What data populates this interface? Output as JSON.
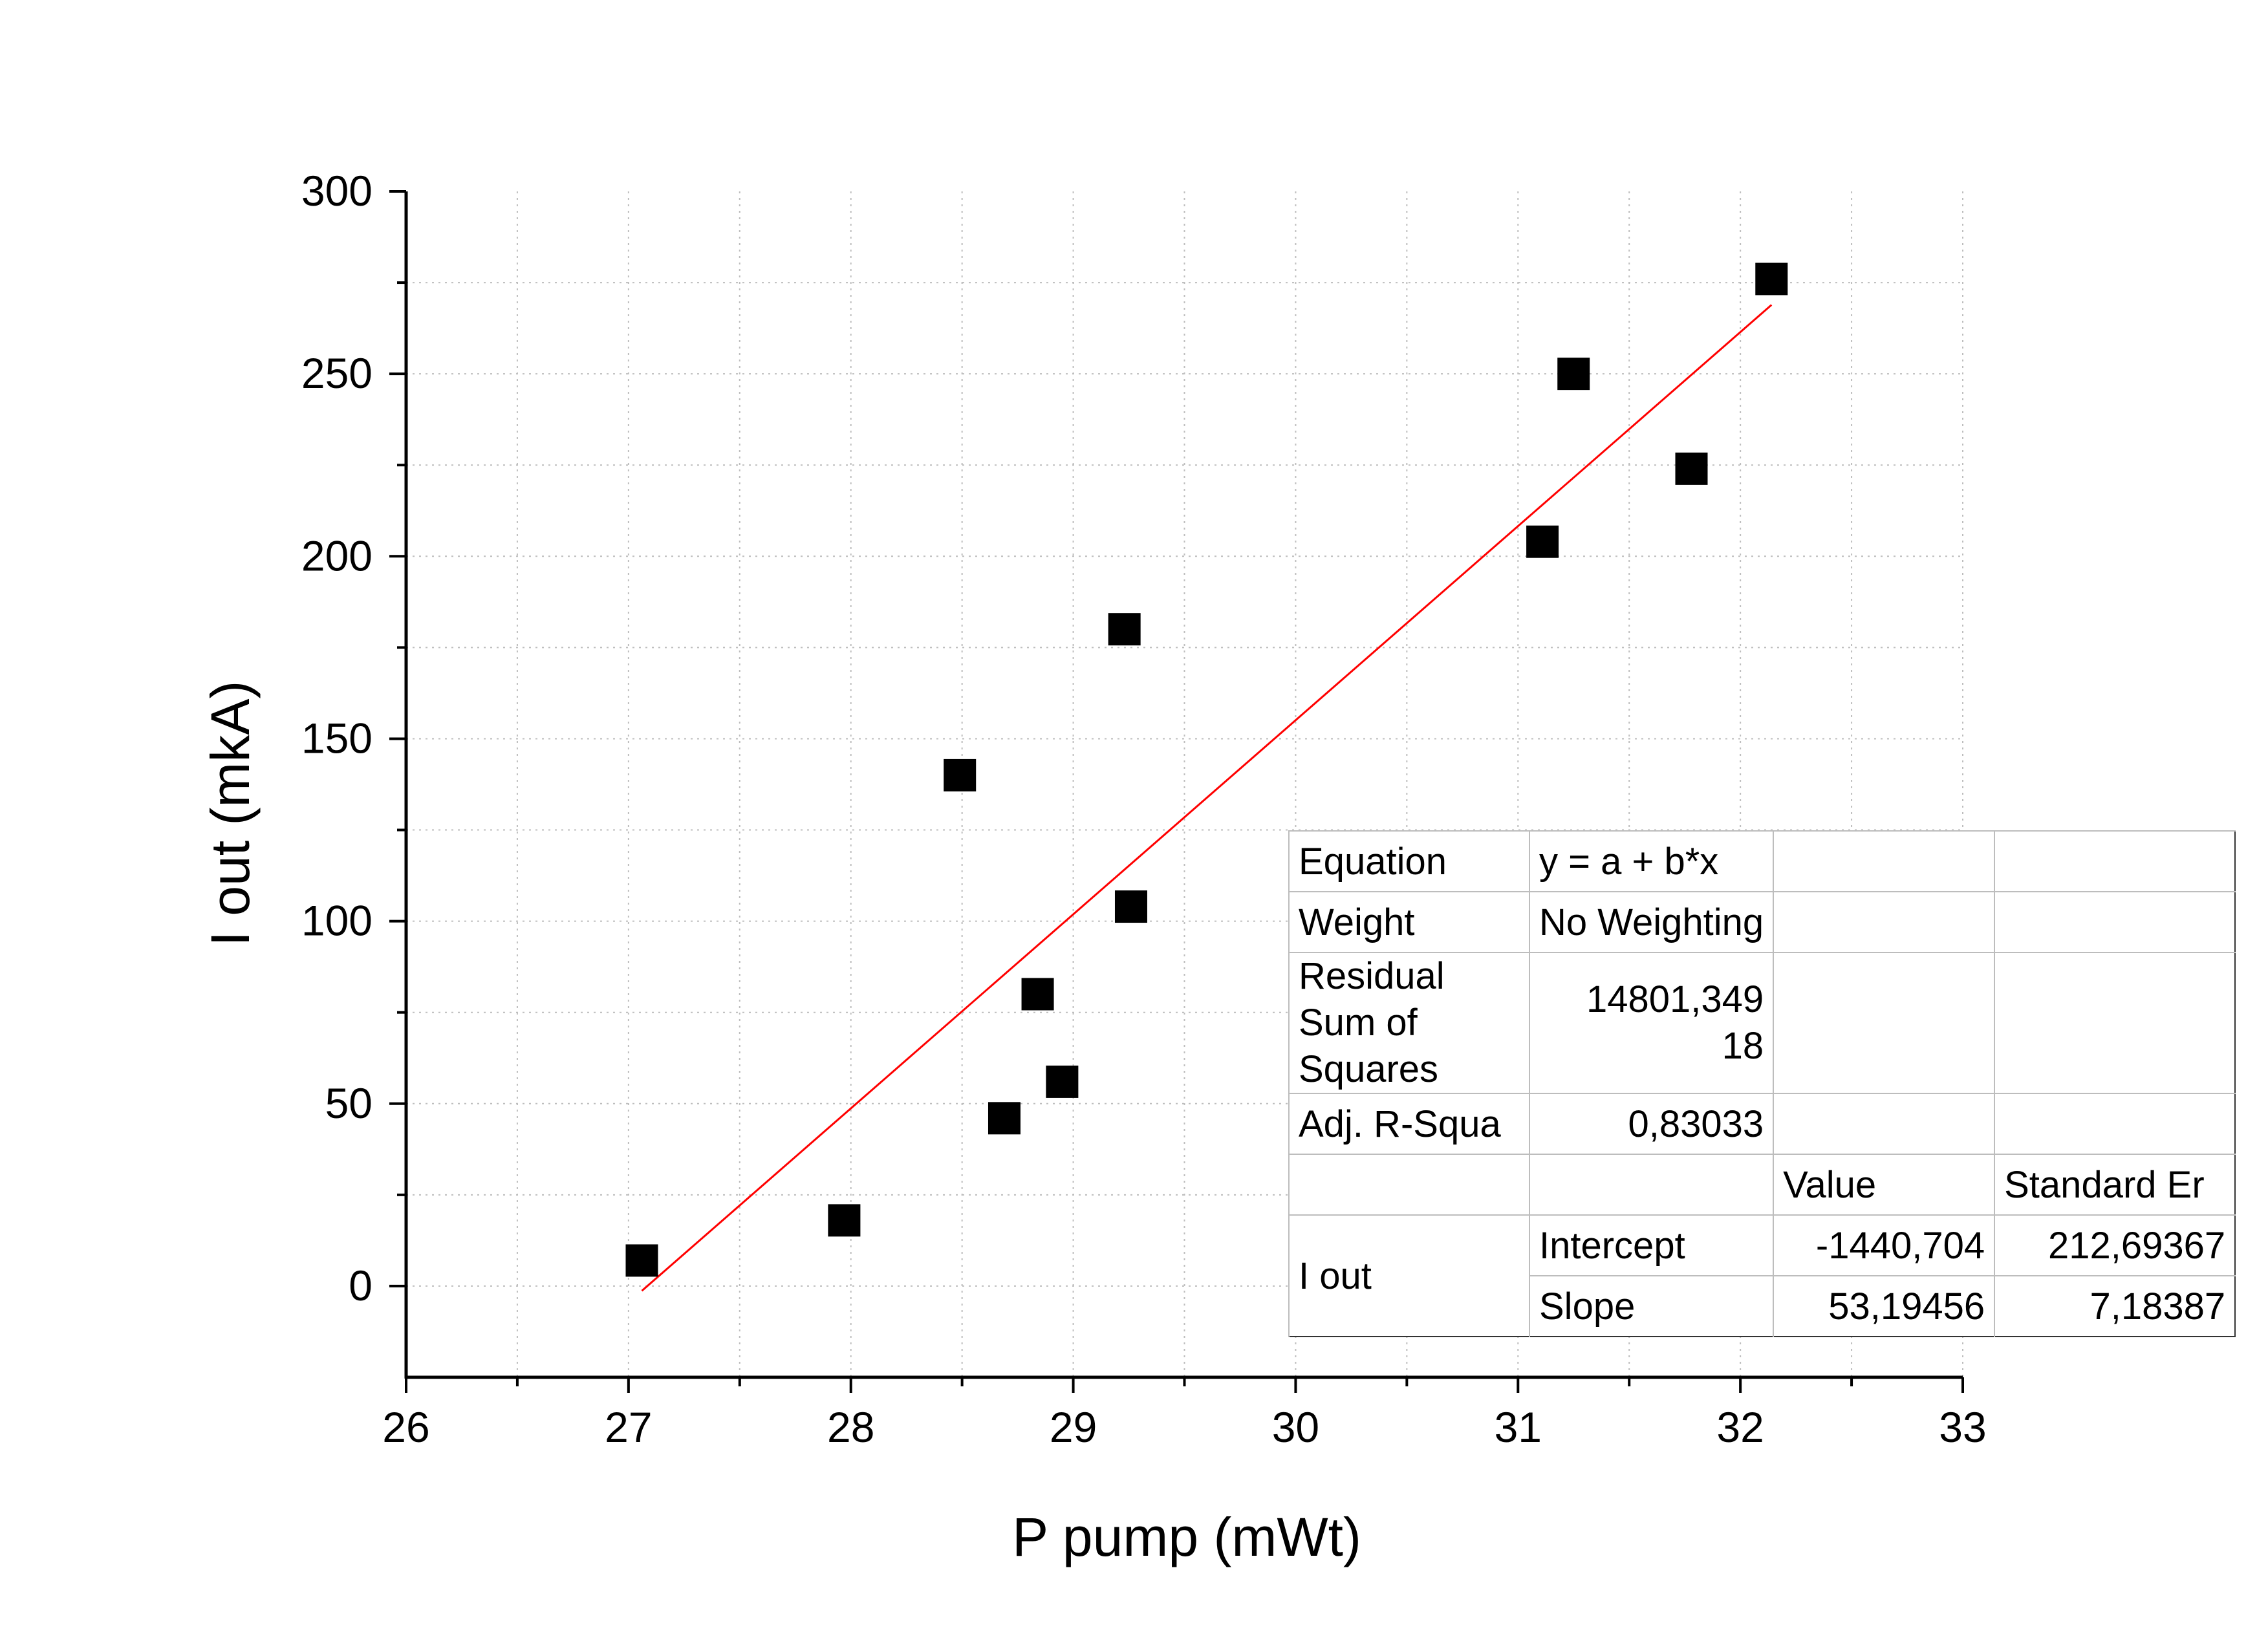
{
  "chart_data": {
    "type": "scatter",
    "xlabel": "P pump (mWt)",
    "ylabel": "I out (mkA)",
    "xlim": [
      26,
      33
    ],
    "ylim": [
      -25,
      300
    ],
    "x_ticks": [
      26,
      27,
      28,
      29,
      30,
      31,
      32,
      33
    ],
    "y_ticks": [
      0,
      50,
      100,
      150,
      200,
      250,
      300
    ],
    "grid": true,
    "legend": "none",
    "series": [
      {
        "marker": "square",
        "color": "#000000",
        "x": [
          27.06,
          27.97,
          28.49,
          28.69,
          28.84,
          28.95,
          29.23,
          29.26,
          31.11,
          31.25,
          31.78,
          32.14
        ],
        "y": [
          7,
          18,
          140,
          46,
          80,
          56,
          180,
          104,
          204,
          250,
          224,
          276
        ]
      }
    ],
    "fit_line": {
      "color": "#ff0000",
      "x": [
        27.06,
        32.14
      ],
      "y": [
        -1.3,
        268.9
      ]
    }
  },
  "fit_table": {
    "equation_label": "Equation",
    "equation_value": "y = a + b*x",
    "weight_label": "Weight",
    "weight_value": "No Weighting",
    "residual_label": "Residual Sum of Squares",
    "residual_value": "14801,349 18",
    "adj_r_label": "Adj. R-Squa",
    "adj_r_value": "0,83033",
    "value_header": "Value",
    "std_err_header": "Standard Er",
    "row_label": "I out",
    "intercept_label": "Intercept",
    "intercept_value": "-1440,704",
    "intercept_error": "212,69367",
    "slope_label": "Slope",
    "slope_value": "53,19456",
    "slope_error": "7,18387"
  }
}
